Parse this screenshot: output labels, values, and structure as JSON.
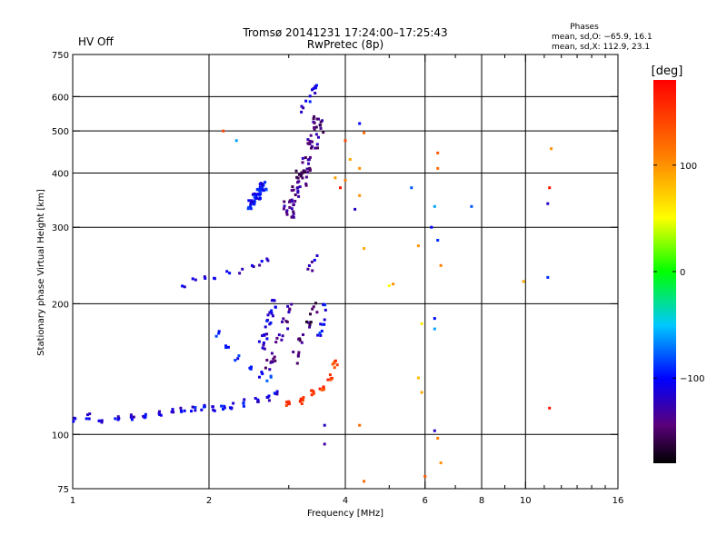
{
  "header": {
    "status": "HV Off",
    "status_color": "#cc0000",
    "title_line1": "Tromsø 20141231 17:24:00–17:25:43",
    "title_line2": "RwPretec (8p)",
    "phases_title": "Phases",
    "phases_line1": "mean, sd,O: −65.9, 16.1",
    "phases_line2": "mean, sd,X: 112.9, 23.1"
  },
  "chart_data": {
    "type": "scatter",
    "xlabel": "Frequency [MHz]",
    "ylabel": "Stationary phase Virtual Height [km]",
    "x_scale": "log",
    "y_scale": "log",
    "xlim": [
      1,
      16
    ],
    "ylim": [
      75,
      750
    ],
    "x_ticks": [
      1,
      2,
      4,
      6,
      8,
      10,
      16
    ],
    "x_tick_labels": [
      "1",
      "2",
      "4",
      "6",
      "8",
      "10",
      "16"
    ],
    "x_minor_ticks": [
      3,
      5,
      7,
      9,
      11,
      12,
      13,
      14,
      15
    ],
    "y_ticks": [
      75,
      100,
      200,
      300,
      400,
      500,
      600,
      750
    ],
    "y_tick_labels": [
      "75",
      "100",
      "200",
      "300",
      "400",
      "500",
      "600",
      "750"
    ],
    "grid_x": [
      2,
      4,
      6,
      8,
      10
    ],
    "grid_y": [
      100,
      200,
      300,
      400,
      500,
      600
    ],
    "grid": true,
    "colorbar": {
      "label": "[deg]",
      "range": [
        -180,
        180
      ],
      "ticks": [
        100,
        0,
        -100
      ],
      "tick_labels": [
        "100",
        "0",
        "−100"
      ]
    },
    "traces": [
      {
        "x": [
          1.0,
          1.08,
          1.15,
          1.25,
          1.35,
          1.45,
          1.55,
          1.65,
          1.75,
          1.85,
          1.95,
          2.05,
          2.15,
          2.25,
          2.4,
          2.55,
          2.7,
          2.8
        ],
        "y": [
          108,
          110,
          108,
          109,
          110,
          111,
          112,
          112,
          113,
          114,
          115,
          115,
          116,
          117,
          118,
          120,
          122,
          125
        ],
        "phase": -110,
        "spread": 0.025,
        "n": 4
      },
      {
        "x": [
          1.75,
          1.85,
          1.95,
          2.05,
          2.2,
          2.35,
          2.5,
          2.6,
          2.7
        ],
        "y": [
          222,
          225,
          228,
          232,
          235,
          238,
          242,
          248,
          255
        ],
        "phase": -115,
        "spread": 0.02,
        "n": 2
      },
      {
        "x": [
          2.1,
          2.2,
          2.3,
          2.45,
          2.6,
          2.72
        ],
        "y": [
          170,
          158,
          150,
          142,
          138,
          135
        ],
        "phase": -95,
        "spread": 0.025,
        "n": 3
      },
      {
        "x": [
          2.48,
          2.52,
          2.56,
          2.6,
          2.64
        ],
        "y": [
          340,
          350,
          358,
          365,
          372
        ],
        "phase": -100,
        "spread": 0.035,
        "n": 10
      },
      {
        "x": [
          2.62,
          2.66,
          2.7,
          2.74,
          2.78
        ],
        "y": [
          160,
          170,
          180,
          190,
          200
        ],
        "phase": -110,
        "spread": 0.03,
        "n": 5
      },
      {
        "x": [
          2.7,
          2.78,
          2.86,
          2.94,
          3.0
        ],
        "y": [
          145,
          150,
          165,
          180,
          195
        ],
        "phase": -140,
        "spread": 0.035,
        "n": 5
      },
      {
        "x": [
          3.0,
          3.1,
          3.2,
          3.3,
          3.4,
          3.5
        ],
        "y": [
          330,
          360,
          390,
          420,
          470,
          520
        ],
        "phase": -140,
        "spread": 0.06,
        "n": 15
      },
      {
        "x": [
          3.1,
          3.2,
          3.3,
          3.4
        ],
        "y": [
          150,
          165,
          180,
          195
        ],
        "phase": -150,
        "spread": 0.04,
        "n": 5
      },
      {
        "x": [
          3.0,
          3.2,
          3.4,
          3.55,
          3.7,
          3.8
        ],
        "y": [
          118,
          120,
          124,
          128,
          135,
          145
        ],
        "phase": 150,
        "spread": 0.025,
        "n": 6
      },
      {
        "x": [
          3.2,
          3.3,
          3.4,
          3.48
        ],
        "y": [
          560,
          590,
          615,
          630
        ],
        "phase": -110,
        "spread": 0.03,
        "n": 3
      },
      {
        "x": [
          3.52,
          3.56,
          3.6
        ],
        "y": [
          170,
          180,
          195
        ],
        "phase": -100,
        "spread": 0.03,
        "n": 4
      },
      {
        "x": [
          3.35,
          3.42
        ],
        "y": [
          240,
          255
        ],
        "phase": -120,
        "spread": 0.03,
        "n": 3
      }
    ],
    "points": [
      {
        "x": 4.3,
        "y": 520,
        "phase": -100
      },
      {
        "x": 4.4,
        "y": 495,
        "phase": 120
      },
      {
        "x": 4.0,
        "y": 475,
        "phase": 140
      },
      {
        "x": 4.1,
        "y": 430,
        "phase": 90
      },
      {
        "x": 4.3,
        "y": 410,
        "phase": 100
      },
      {
        "x": 3.8,
        "y": 390,
        "phase": 95
      },
      {
        "x": 4.0,
        "y": 385,
        "phase": 110
      },
      {
        "x": 3.9,
        "y": 370,
        "phase": 170
      },
      {
        "x": 4.3,
        "y": 355,
        "phase": 100
      },
      {
        "x": 4.2,
        "y": 330,
        "phase": -120
      },
      {
        "x": 5.6,
        "y": 370,
        "phase": -80
      },
      {
        "x": 6.4,
        "y": 445,
        "phase": 130
      },
      {
        "x": 6.4,
        "y": 410,
        "phase": 120
      },
      {
        "x": 7.6,
        "y": 335,
        "phase": -80
      },
      {
        "x": 11.4,
        "y": 455,
        "phase": 100
      },
      {
        "x": 11.3,
        "y": 370,
        "phase": 170
      },
      {
        "x": 11.2,
        "y": 340,
        "phase": -120
      },
      {
        "x": 6.3,
        "y": 335,
        "phase": -60
      },
      {
        "x": 6.2,
        "y": 300,
        "phase": -100
      },
      {
        "x": 6.4,
        "y": 280,
        "phase": -90
      },
      {
        "x": 5.8,
        "y": 272,
        "phase": 100
      },
      {
        "x": 4.4,
        "y": 268,
        "phase": 90
      },
      {
        "x": 6.5,
        "y": 245,
        "phase": 110
      },
      {
        "x": 5.0,
        "y": 220,
        "phase": 50
      },
      {
        "x": 5.1,
        "y": 222,
        "phase": 100
      },
      {
        "x": 9.9,
        "y": 225,
        "phase": 90
      },
      {
        "x": 11.2,
        "y": 230,
        "phase": -90
      },
      {
        "x": 6.3,
        "y": 185,
        "phase": -100
      },
      {
        "x": 6.3,
        "y": 175,
        "phase": -60
      },
      {
        "x": 5.9,
        "y": 180,
        "phase": 60
      },
      {
        "x": 5.8,
        "y": 135,
        "phase": 80
      },
      {
        "x": 5.9,
        "y": 125,
        "phase": 90
      },
      {
        "x": 11.3,
        "y": 115,
        "phase": 170
      },
      {
        "x": 4.3,
        "y": 105,
        "phase": 120
      },
      {
        "x": 6.3,
        "y": 102,
        "phase": -120
      },
      {
        "x": 3.6,
        "y": 105,
        "phase": -120
      },
      {
        "x": 3.6,
        "y": 95,
        "phase": -130
      },
      {
        "x": 4.4,
        "y": 78,
        "phase": 120
      },
      {
        "x": 6.0,
        "y": 80,
        "phase": 130
      },
      {
        "x": 6.5,
        "y": 86,
        "phase": 100
      },
      {
        "x": 6.4,
        "y": 98,
        "phase": 110
      },
      {
        "x": 2.15,
        "y": 500,
        "phase": 140
      },
      {
        "x": 2.3,
        "y": 475,
        "phase": -60
      }
    ]
  }
}
